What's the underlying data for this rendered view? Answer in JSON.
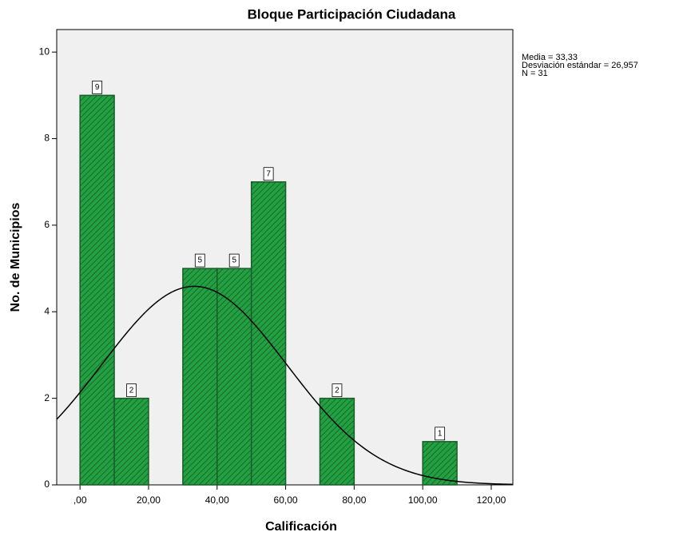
{
  "chart_data": {
    "type": "histogram",
    "title": "Bloque Participación Ciudadana",
    "x_label": "Calificación",
    "y_label": "No. de Municipios",
    "bins": [
      0,
      10,
      20,
      30,
      40,
      50,
      60,
      70,
      80,
      90,
      100,
      110
    ],
    "counts": [
      9,
      2,
      0,
      5,
      5,
      7,
      0,
      2,
      0,
      0,
      1
    ],
    "color": "#23a041",
    "edge_color": "#1a5c2a",
    "xlim": [
      -6.8,
      126.3
    ],
    "ylim": [
      0,
      10.52
    ],
    "xticks": [
      {
        "value": 0,
        "label": ",00"
      },
      {
        "value": 20,
        "label": "20,00"
      },
      {
        "value": 40,
        "label": "40,00"
      },
      {
        "value": 60,
        "label": "60,00"
      },
      {
        "value": 80,
        "label": "80,00"
      },
      {
        "value": 100,
        "label": "100,00"
      },
      {
        "value": 120,
        "label": "120,00"
      }
    ],
    "yticks": [
      0,
      2,
      4,
      6,
      8,
      10
    ],
    "normal_curve": true,
    "stats": [
      {
        "text": "Media = 33,33",
        "value": 33.33
      },
      {
        "text": "Desviación estándar = 26,957",
        "value": 26.957
      },
      {
        "text": "N = 31",
        "value": 31
      }
    ]
  }
}
